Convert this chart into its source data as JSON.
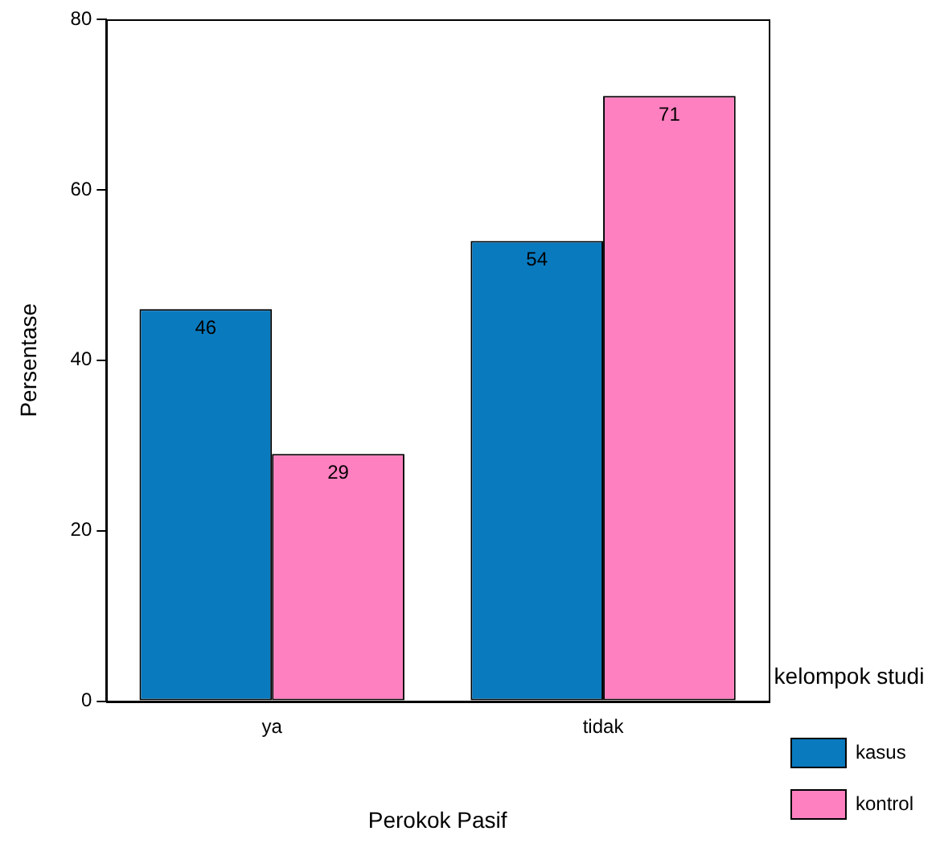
{
  "chart_data": {
    "type": "bar",
    "xlabel": "Perokok Pasif",
    "ylabel": "Persentase",
    "categories": [
      "ya",
      "tidak"
    ],
    "series": [
      {
        "name": "kasus",
        "color": "#0a7abf",
        "values": [
          46,
          54
        ]
      },
      {
        "name": "kontrol",
        "color": "#ff80c0",
        "values": [
          29,
          71
        ]
      }
    ],
    "ylim": [
      0,
      80
    ],
    "yticks": [
      0,
      20,
      40,
      60,
      80
    ],
    "grid": false,
    "legend": "right",
    "legend_title": "kelompok studi",
    "data_labels": true
  }
}
